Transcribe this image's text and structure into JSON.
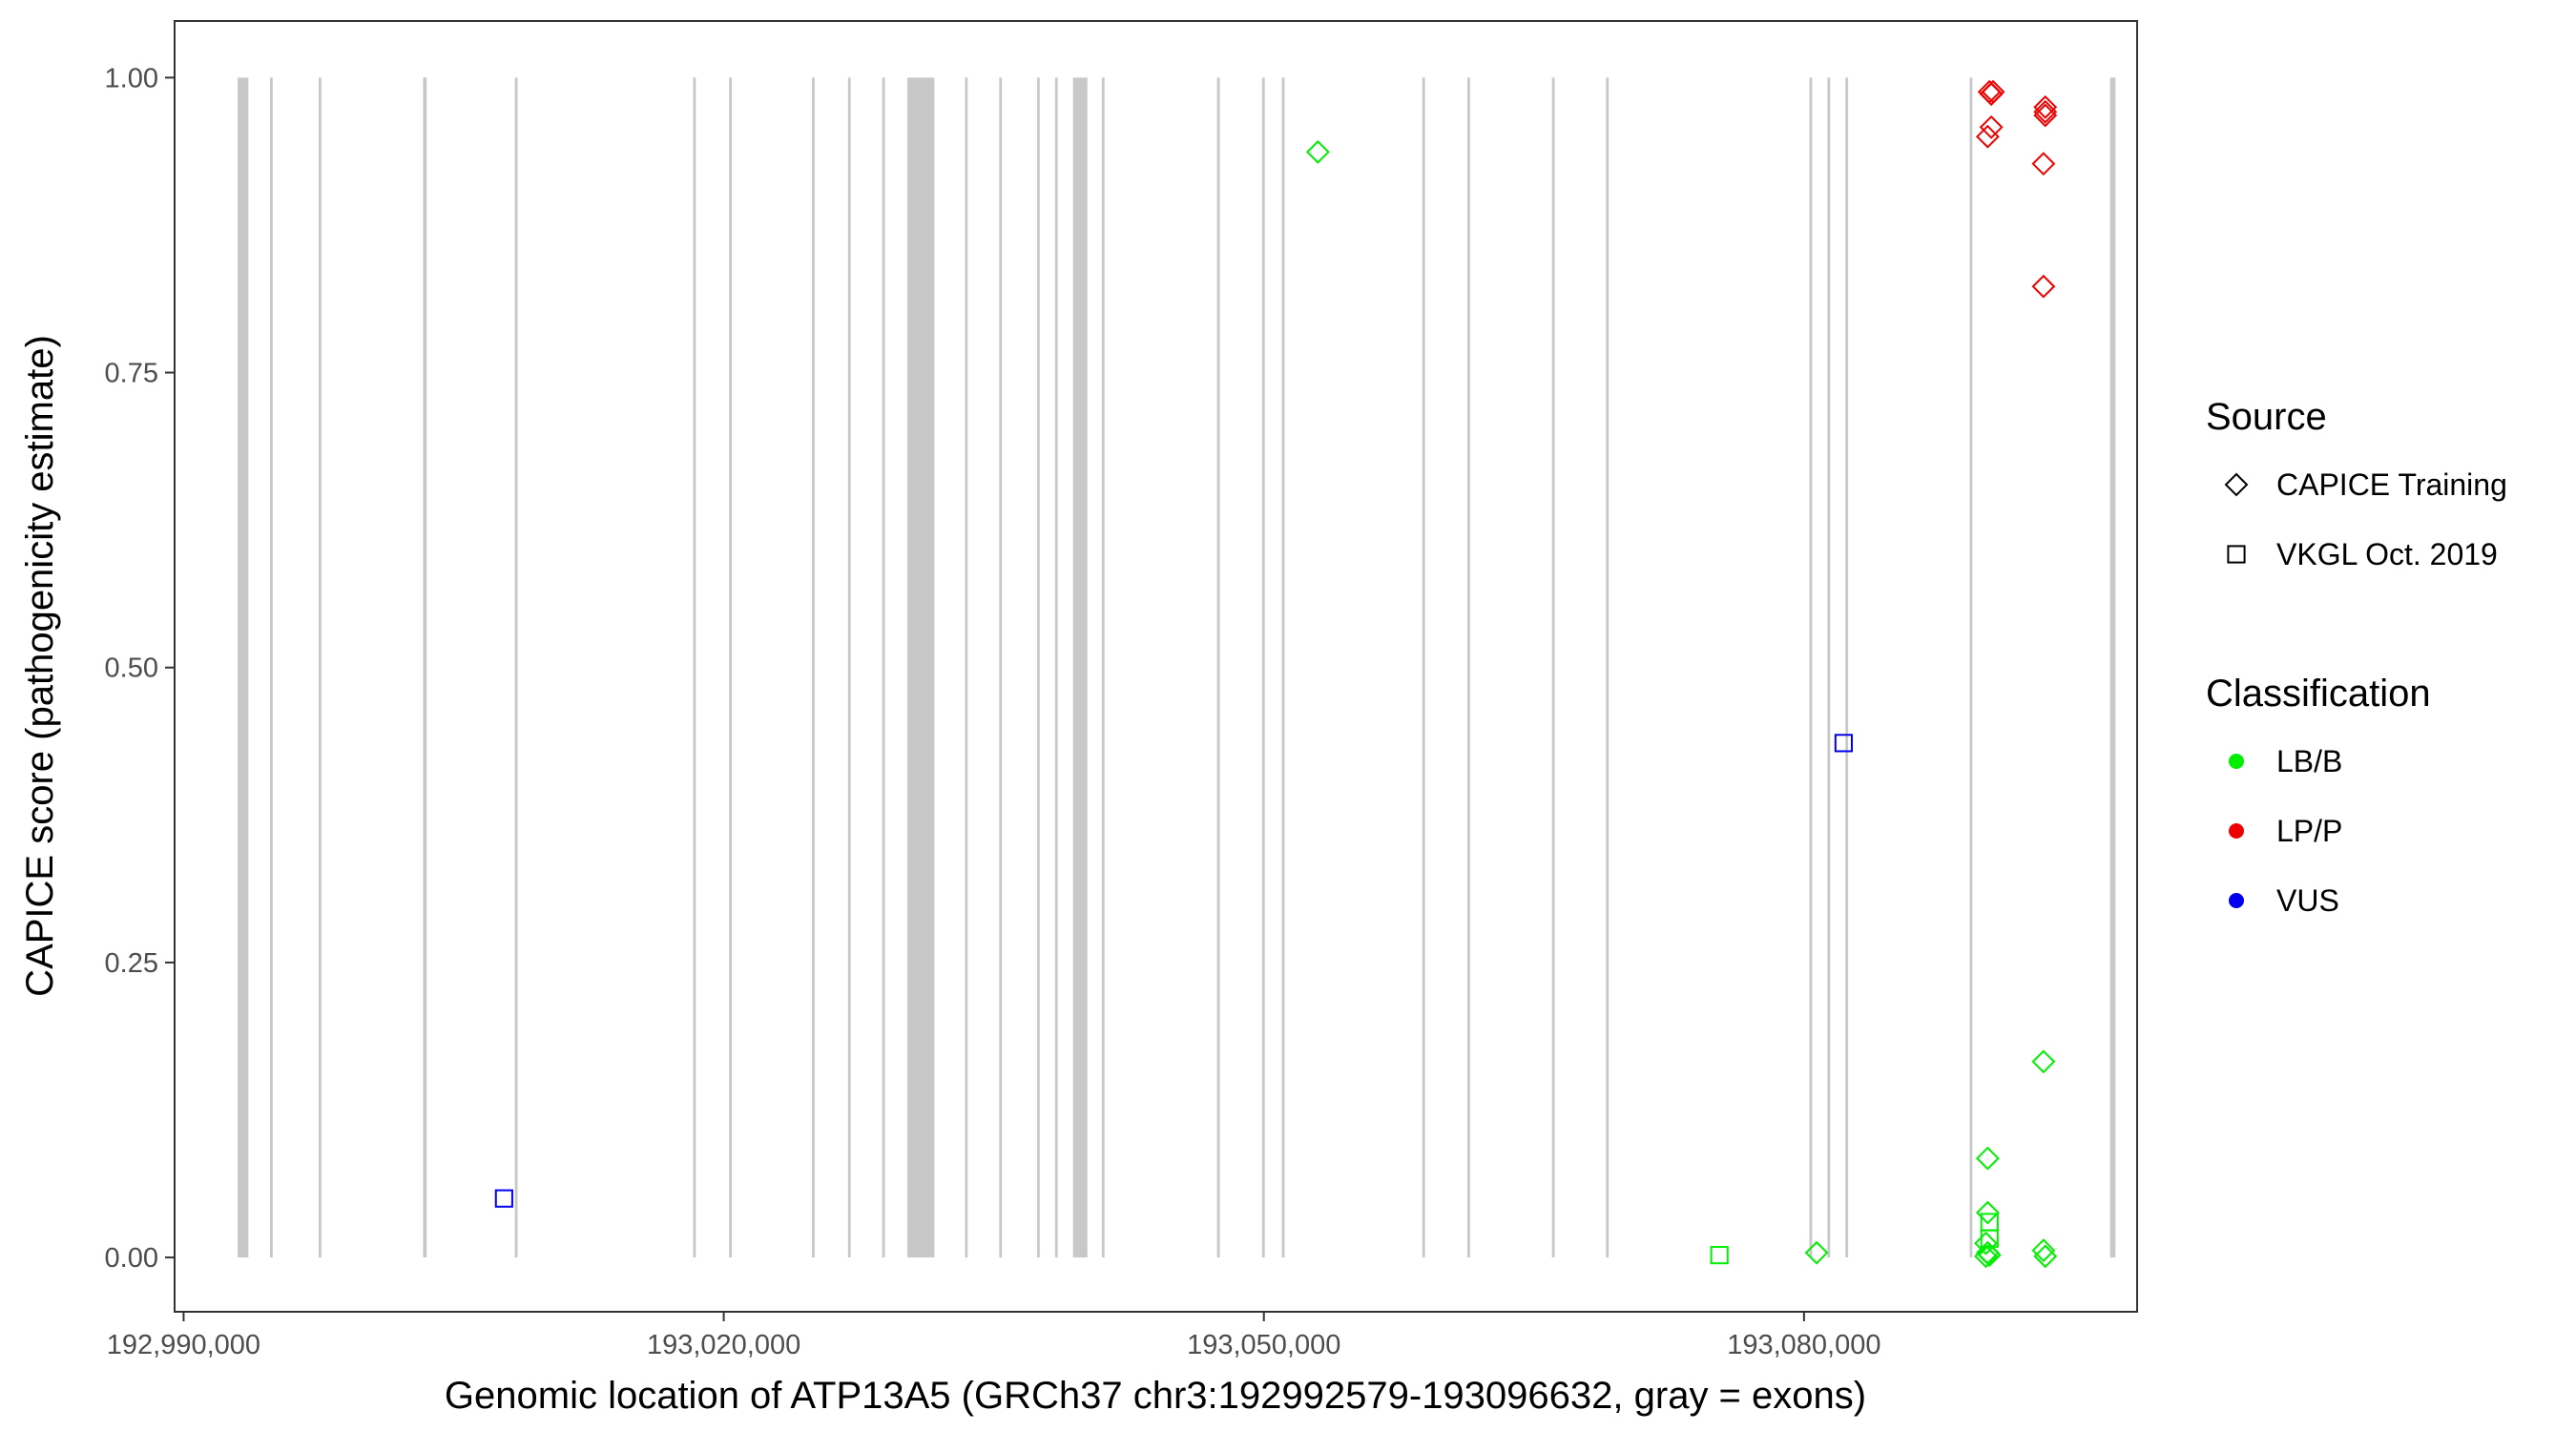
{
  "chart_data": {
    "type": "scatter",
    "xlabel": "Genomic location of ATP13A5 (GRCh37 chr3:192992579-193096632, gray = exons)",
    "ylabel": "CAPICE score (pathogenicity estimate)",
    "xlim": [
      192989500,
      193098500
    ],
    "ylim": [
      -0.046,
      1.048
    ],
    "x_ticks": [
      192990000,
      193020000,
      193050000,
      193080000
    ],
    "x_tick_labels": [
      "192,990,000",
      "193,020,000",
      "193,050,000",
      "193,080,000"
    ],
    "y_ticks": [
      0.0,
      0.25,
      0.5,
      0.75,
      1.0
    ],
    "y_tick_labels": [
      "0.00",
      "0.25",
      "0.50",
      "0.75",
      "1.00"
    ],
    "grid": false,
    "legend_position": "right",
    "exon_color": "#c8c8c8",
    "exons": [
      [
        192993000,
        192993600
      ],
      [
        192994800,
        192994950
      ],
      [
        192997500,
        192997650
      ],
      [
        193003300,
        193003500
      ],
      [
        193008400,
        193008550
      ],
      [
        193018300,
        193018450
      ],
      [
        193020300,
        193020450
      ],
      [
        193024900,
        193025050
      ],
      [
        193026900,
        193027050
      ],
      [
        193028800,
        193028950
      ],
      [
        193030200,
        193031700
      ],
      [
        193033400,
        193033550
      ],
      [
        193035300,
        193035450
      ],
      [
        193037400,
        193037550
      ],
      [
        193038400,
        193038550
      ],
      [
        193039400,
        193040200
      ],
      [
        193041000,
        193041150
      ],
      [
        193047400,
        193047550
      ],
      [
        193049900,
        193050050
      ],
      [
        193051000,
        193051150
      ],
      [
        193058800,
        193058950
      ],
      [
        193061300,
        193061450
      ],
      [
        193066000,
        193066150
      ],
      [
        193069000,
        193069150
      ],
      [
        193080300,
        193080450
      ],
      [
        193081300,
        193081450
      ],
      [
        193082300,
        193082450
      ],
      [
        193089200,
        193089350
      ],
      [
        193097000,
        193097300
      ]
    ],
    "legend": {
      "source_title": "Source",
      "source_items": [
        {
          "label": "CAPICE Training",
          "shape": "diamond"
        },
        {
          "label": "VKGL Oct. 2019",
          "shape": "square"
        }
      ],
      "class_title": "Classification",
      "class_items": [
        {
          "label": "LB/B",
          "color": "#00ee00"
        },
        {
          "label": "LP/P",
          "color": "#ee0000"
        },
        {
          "label": "VUS",
          "color": "#0000ee"
        }
      ]
    },
    "points": [
      {
        "x": 193090300,
        "y": 0.988,
        "source": "CAPICE Training",
        "class": "LP/P"
      },
      {
        "x": 193090500,
        "y": 0.988,
        "source": "CAPICE Training",
        "class": "LP/P"
      },
      {
        "x": 193090400,
        "y": 0.986,
        "source": "CAPICE Training",
        "class": "LP/P"
      },
      {
        "x": 193090400,
        "y": 0.958,
        "source": "CAPICE Training",
        "class": "LP/P"
      },
      {
        "x": 193090200,
        "y": 0.95,
        "source": "CAPICE Training",
        "class": "LP/P"
      },
      {
        "x": 193093400,
        "y": 0.975,
        "source": "CAPICE Training",
        "class": "LP/P"
      },
      {
        "x": 193093400,
        "y": 0.968,
        "source": "CAPICE Training",
        "class": "LP/P"
      },
      {
        "x": 193093400,
        "y": 0.971,
        "source": "CAPICE Training",
        "class": "LP/P"
      },
      {
        "x": 193093300,
        "y": 0.927,
        "source": "CAPICE Training",
        "class": "LP/P"
      },
      {
        "x": 193093300,
        "y": 0.823,
        "source": "CAPICE Training",
        "class": "LP/P"
      },
      {
        "x": 193053000,
        "y": 0.937,
        "source": "CAPICE Training",
        "class": "LB/B"
      },
      {
        "x": 193093300,
        "y": 0.166,
        "source": "CAPICE Training",
        "class": "LB/B"
      },
      {
        "x": 193090200,
        "y": 0.084,
        "source": "CAPICE Training",
        "class": "LB/B"
      },
      {
        "x": 193090200,
        "y": 0.038,
        "source": "CAPICE Training",
        "class": "LB/B"
      },
      {
        "x": 193090100,
        "y": 0.012,
        "source": "CAPICE Training",
        "class": "LB/B"
      },
      {
        "x": 193090200,
        "y": 0.004,
        "source": "CAPICE Training",
        "class": "LB/B"
      },
      {
        "x": 193090300,
        "y": 0.002,
        "source": "CAPICE Training",
        "class": "LB/B"
      },
      {
        "x": 193090100,
        "y": 0.001,
        "source": "CAPICE Training",
        "class": "LB/B"
      },
      {
        "x": 193093300,
        "y": 0.006,
        "source": "CAPICE Training",
        "class": "LB/B"
      },
      {
        "x": 193093400,
        "y": 0.001,
        "source": "CAPICE Training",
        "class": "LB/B"
      },
      {
        "x": 193080700,
        "y": 0.004,
        "source": "CAPICE Training",
        "class": "LB/B"
      },
      {
        "x": 193075300,
        "y": 0.002,
        "source": "VKGL Oct. 2019",
        "class": "LB/B"
      },
      {
        "x": 193090300,
        "y": 0.03,
        "source": "VKGL Oct. 2019",
        "class": "LB/B"
      },
      {
        "x": 193090300,
        "y": 0.016,
        "source": "VKGL Oct. 2019",
        "class": "LB/B"
      },
      {
        "x": 193007800,
        "y": 0.05,
        "source": "VKGL Oct. 2019",
        "class": "VUS"
      },
      {
        "x": 193082200,
        "y": 0.436,
        "source": "VKGL Oct. 2019",
        "class": "VUS"
      }
    ]
  }
}
